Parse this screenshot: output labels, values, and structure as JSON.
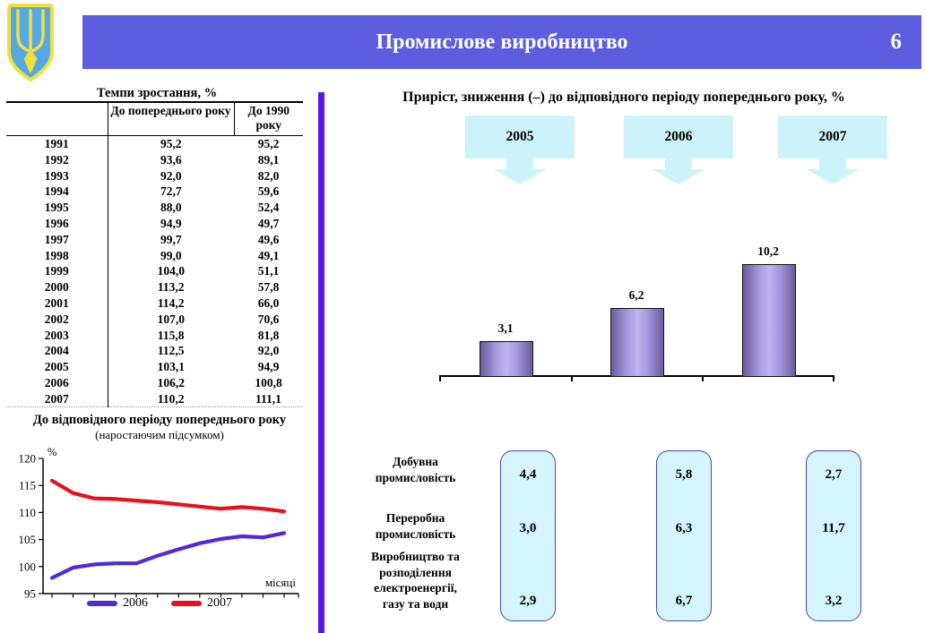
{
  "header": {
    "title": "Промислове виробництво",
    "page_number": "6"
  },
  "icons": {
    "emblem": "ukraine-trident-shield"
  },
  "colors": {
    "banner": "#5d5ddf",
    "divider": "#5716ee",
    "callout_fill": "#cdf3fa",
    "value_box_fill": "#d4f5fb",
    "value_box_border": "#4949ac",
    "bar_edge": "#6b5b9b",
    "bar_center": "#c2b4f0",
    "line_2006": "#5229d8",
    "line_2007": "#e8101c",
    "shield_blue": "#55a8e8",
    "trident_yellow": "#f2df3a"
  },
  "table": {
    "title": "Темпи зростання, %",
    "columns": [
      "",
      "До попереднього року",
      "До 1990 року"
    ],
    "rows": [
      [
        "1991",
        "95,2",
        "95,2"
      ],
      [
        "1992",
        "93,6",
        "89,1"
      ],
      [
        "1993",
        "92,0",
        "82,0"
      ],
      [
        "1994",
        "72,7",
        "59,6"
      ],
      [
        "1995",
        "88,0",
        "52,4"
      ],
      [
        "1996",
        "94,9",
        "49,7"
      ],
      [
        "1997",
        "99,7",
        "49,6"
      ],
      [
        "1998",
        "99,0",
        "49,1"
      ],
      [
        "1999",
        "104,0",
        "51,1"
      ],
      [
        "2000",
        "113,2",
        "57,8"
      ],
      [
        "2001",
        "114,2",
        "66,0"
      ],
      [
        "2002",
        "107,0",
        "70,6"
      ],
      [
        "2003",
        "115,8",
        "81,8"
      ],
      [
        "2004",
        "112,5",
        "92,0"
      ],
      [
        "2005",
        "103,1",
        "94,9"
      ],
      [
        "2006",
        "106,2",
        "100,8"
      ],
      [
        "2007",
        "110,2",
        "111,1"
      ]
    ]
  },
  "chart_data": [
    {
      "type": "line",
      "title": "До відповідного періоду попереднього року",
      "subtitle": "(наростаючим підсумком)",
      "ylabel": "%",
      "xlabel": "місяці",
      "ylim": [
        95,
        120
      ],
      "y_ticks": [
        95,
        100,
        105,
        110,
        115,
        120
      ],
      "x": [
        1,
        2,
        3,
        4,
        5,
        6,
        7,
        8,
        9,
        10,
        11,
        12
      ],
      "grid": false,
      "legend_position": "bottom",
      "series": [
        {
          "name": "2006",
          "color": "#5229d8",
          "values": [
            97.9,
            99.8,
            100.4,
            100.6,
            100.6,
            102.0,
            103.2,
            104.3,
            105.1,
            105.6,
            105.4,
            106.2
          ]
        },
        {
          "name": "2007",
          "color": "#e8101c",
          "values": [
            115.9,
            113.6,
            112.6,
            112.5,
            112.2,
            111.9,
            111.5,
            111.1,
            110.7,
            111.0,
            110.7,
            110.2
          ]
        }
      ]
    },
    {
      "type": "bar",
      "title": "Приріст, зниження (–) до відповідного періоду попереднього року, %",
      "categories": [
        "2005",
        "2006",
        "2007"
      ],
      "values": [
        3.1,
        6.2,
        10.2
      ],
      "labels": [
        "3,1",
        "6,2",
        "10,2"
      ],
      "ylim": [
        0,
        10.2
      ],
      "grid": false
    }
  ],
  "callouts": [
    "2005",
    "2006",
    "2007"
  ],
  "sectors": {
    "labels": [
      {
        "lines": [
          "Добувна",
          "промисловість"
        ]
      },
      {
        "lines": [
          "Переробна",
          "промисловість"
        ]
      },
      {
        "lines": [
          "Виробництво та",
          "розподілення",
          "електроенергії,",
          "газу та води"
        ]
      }
    ],
    "columns": [
      {
        "year": "2005",
        "values": [
          "4,4",
          "3,0",
          "2,9"
        ]
      },
      {
        "year": "2006",
        "values": [
          "5,8",
          "6,3",
          "6,7"
        ]
      },
      {
        "year": "2007",
        "values": [
          "2,7",
          "11,7",
          "3,2"
        ]
      }
    ]
  }
}
